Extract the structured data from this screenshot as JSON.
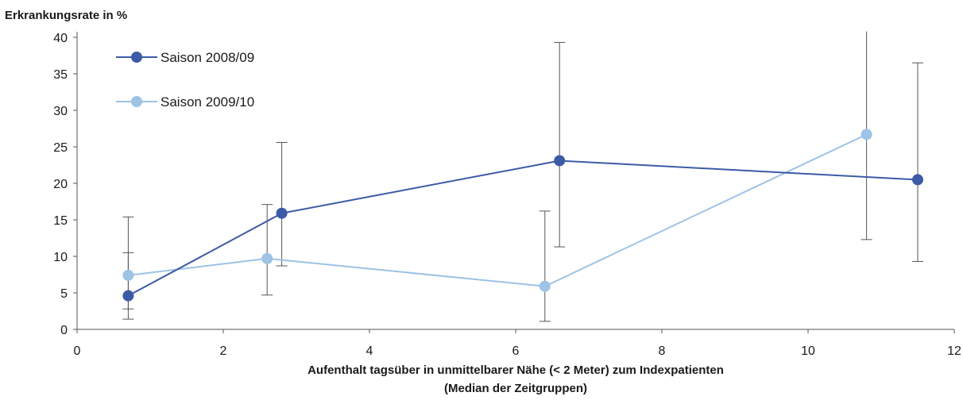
{
  "chart_data": {
    "type": "line",
    "ylabel": "Erkrankungsrate in %",
    "xlabel_lines": [
      "Aufenthalt tagsüber in unmittelbarer Nähe (< 2 Meter) zum Indexpatienten",
      "(Median der Zeitgruppen)"
    ],
    "xlim": [
      0,
      12
    ],
    "ylim": [
      0,
      40
    ],
    "xticks": [
      0,
      2,
      4,
      6,
      8,
      10,
      12
    ],
    "yticks": [
      0,
      5,
      10,
      15,
      20,
      25,
      30,
      35,
      40
    ],
    "grid": false,
    "legend_position": "top-left",
    "series": [
      {
        "name": "Saison 2008/09",
        "color": "#3c5aa6",
        "x": [
          0.7,
          2.8,
          6.6,
          11.5
        ],
        "y": [
          4.6,
          15.9,
          23.1,
          20.5
        ],
        "err_low": [
          1.4,
          8.7,
          11.3,
          9.3
        ],
        "err_high": [
          10.5,
          25.6,
          39.3,
          36.5
        ]
      },
      {
        "name": "Saison 2009/10",
        "color": "#9dc3e6",
        "x": [
          0.7,
          2.6,
          6.4,
          10.8
        ],
        "y": [
          7.4,
          9.7,
          5.9,
          26.7
        ],
        "err_low": [
          2.8,
          4.7,
          1.1,
          12.3
        ],
        "err_high": [
          15.4,
          17.1,
          16.2,
          40.9
        ]
      }
    ]
  }
}
